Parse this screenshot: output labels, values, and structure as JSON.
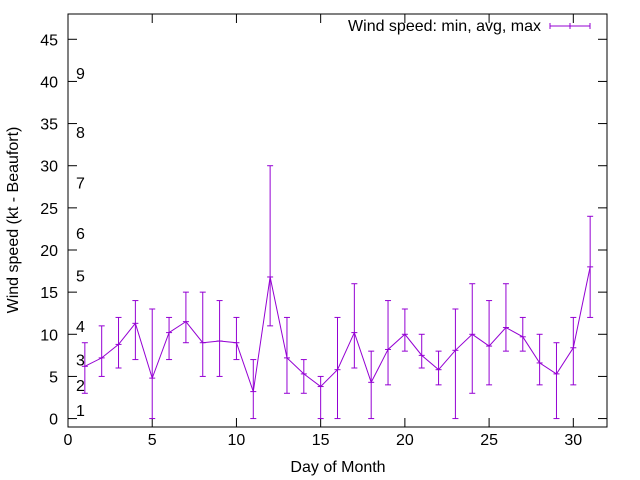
{
  "chart_data": {
    "type": "line",
    "title": "",
    "xlabel": "Day of Month",
    "ylabel": "Wind speed (kt - Beaufort)",
    "xlim": [
      0,
      32
    ],
    "ylim": [
      -1,
      48
    ],
    "xticks": [
      0,
      5,
      10,
      15,
      20,
      25,
      30
    ],
    "yticks": [
      0,
      5,
      10,
      15,
      20,
      25,
      30,
      35,
      40,
      45
    ],
    "grid": false,
    "legend_position": "top-right",
    "beaufort_labels": [
      {
        "label": "1",
        "y": 1
      },
      {
        "label": "2",
        "y": 4
      },
      {
        "label": "3",
        "y": 7
      },
      {
        "label": "4",
        "y": 11
      },
      {
        "label": "5",
        "y": 17
      },
      {
        "label": "6",
        "y": 22
      },
      {
        "label": "7",
        "y": 28
      },
      {
        "label": "8",
        "y": 34
      },
      {
        "label": "9",
        "y": 41
      }
    ],
    "series": [
      {
        "name": "Wind speed: min, avg, max",
        "color": "#9400d3",
        "points": [
          {
            "x": 1,
            "min": 3,
            "avg": 6.2,
            "max": 9
          },
          {
            "x": 2,
            "min": 5,
            "avg": 7.2,
            "max": 11
          },
          {
            "x": 3,
            "min": 6,
            "avg": 8.8,
            "max": 12
          },
          {
            "x": 4,
            "min": 7,
            "avg": 11.3,
            "max": 14
          },
          {
            "x": 5,
            "min": 0,
            "avg": 4.8,
            "max": 13
          },
          {
            "x": 6,
            "min": 7,
            "avg": 10.2,
            "max": 12
          },
          {
            "x": 7,
            "min": 9,
            "avg": 11.5,
            "max": 15
          },
          {
            "x": 8,
            "min": 5,
            "avg": 9,
            "max": 15
          },
          {
            "x": 9,
            "min": 5,
            "avg": 9.2,
            "max": 14
          },
          {
            "x": 10,
            "min": 7,
            "avg": 9,
            "max": 12
          },
          {
            "x": 11,
            "min": 0,
            "avg": 3.2,
            "max": 7
          },
          {
            "x": 12,
            "min": 11,
            "avg": 16.8,
            "max": 30
          },
          {
            "x": 13,
            "min": 3,
            "avg": 7.2,
            "max": 12
          },
          {
            "x": 14,
            "min": 3,
            "avg": 5.3,
            "max": 7
          },
          {
            "x": 15,
            "min": 0,
            "avg": 3.8,
            "max": 5
          },
          {
            "x": 16,
            "min": 0,
            "avg": 5.8,
            "max": 12
          },
          {
            "x": 17,
            "min": 6,
            "avg": 10.2,
            "max": 16
          },
          {
            "x": 18,
            "min": 0,
            "avg": 4.3,
            "max": 8
          },
          {
            "x": 19,
            "min": 4,
            "avg": 8.2,
            "max": 14
          },
          {
            "x": 20,
            "min": 8,
            "avg": 10,
            "max": 13
          },
          {
            "x": 21,
            "min": 6,
            "avg": 7.5,
            "max": 10
          },
          {
            "x": 22,
            "min": 4,
            "avg": 5.8,
            "max": 8
          },
          {
            "x": 23,
            "min": 0,
            "avg": 8.1,
            "max": 13
          },
          {
            "x": 24,
            "min": 3,
            "avg": 10,
            "max": 16
          },
          {
            "x": 25,
            "min": 4,
            "avg": 8.6,
            "max": 14
          },
          {
            "x": 26,
            "min": 8,
            "avg": 10.8,
            "max": 16
          },
          {
            "x": 27,
            "min": 8,
            "avg": 9.7,
            "max": 12
          },
          {
            "x": 28,
            "min": 4,
            "avg": 6.6,
            "max": 10
          },
          {
            "x": 29,
            "min": 0,
            "avg": 5.3,
            "max": 9
          },
          {
            "x": 30,
            "min": 4,
            "avg": 8.4,
            "max": 12
          },
          {
            "x": 31,
            "min": 12,
            "avg": 18,
            "max": 24
          }
        ]
      }
    ]
  }
}
